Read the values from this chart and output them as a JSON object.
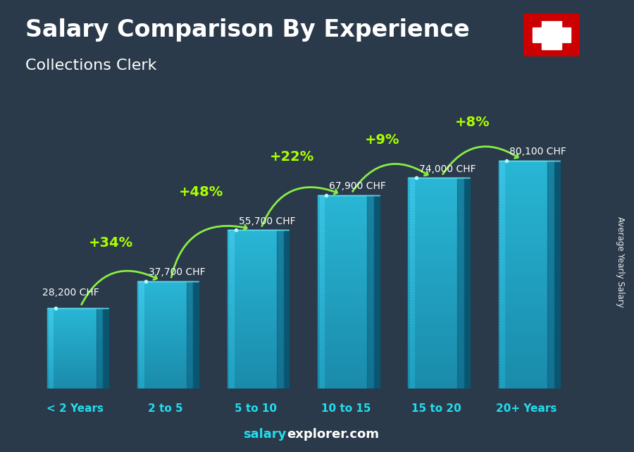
{
  "title_main": "Salary Comparison By Experience",
  "title_sub": "Collections Clerk",
  "categories": [
    "< 2 Years",
    "2 to 5",
    "5 to 10",
    "10 to 15",
    "15 to 20",
    "20+ Years"
  ],
  "values": [
    28200,
    37700,
    55700,
    67900,
    74000,
    80100
  ],
  "value_labels": [
    "28,200 CHF",
    "37,700 CHF",
    "55,700 CHF",
    "67,900 CHF",
    "74,000 CHF",
    "80,100 CHF"
  ],
  "pct_labels": [
    "+34%",
    "+48%",
    "+22%",
    "+9%",
    "+8%"
  ],
  "bar_color_main": "#29b6d5",
  "bar_color_light": "#55d8f0",
  "bar_color_dark": "#1a8aaa",
  "bar_color_side": "#0d6080",
  "bar_color_top": "#80eeff",
  "bg_color": "#2a3a4a",
  "title_color": "#ffffff",
  "subtitle_color": "#ffffff",
  "value_label_color": "#ffffff",
  "pct_color": "#aaff00",
  "xlabel_color": "#22ddee",
  "footer_salary_color": "#22ddee",
  "footer_explorer_color": "#ffffff",
  "ylabel_text": "Average Yearly Salary",
  "footer_salary": "salary",
  "footer_explorer": "explorer.com",
  "bar_width": 0.62,
  "ylim_max": 92000,
  "arrow_color": "#88ee44"
}
